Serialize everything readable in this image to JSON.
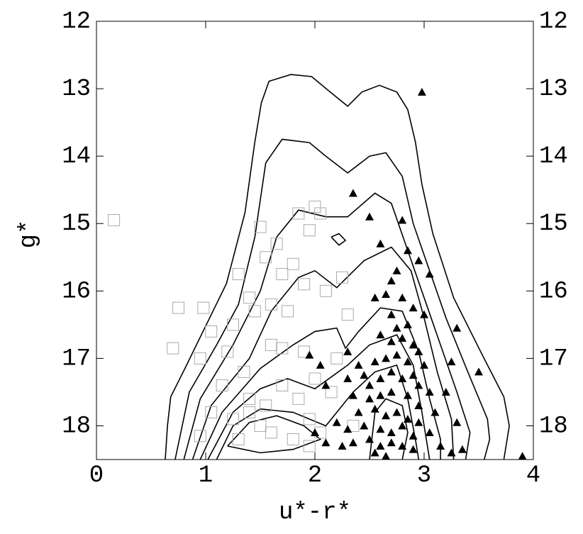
{
  "chart_data": {
    "type": "scatter",
    "xlabel": "u*-r*",
    "ylabel": "g*",
    "xlim": [
      0,
      4
    ],
    "ylim": [
      18.5,
      12
    ],
    "xticks": [
      0,
      1,
      2,
      3,
      4
    ],
    "yticks": [
      12,
      13,
      14,
      15,
      16,
      17,
      18
    ],
    "series": [
      {
        "marker": "square",
        "color": "#aaaaaa",
        "x": [
          0.16,
          0.75,
          0.7,
          0.95,
          0.98,
          1.05,
          1.2,
          1.25,
          1.3,
          1.4,
          1.5,
          1.55,
          1.65,
          1.7,
          1.8,
          1.85,
          1.95,
          2.0,
          2.05,
          1.9,
          2.1,
          1.45,
          1.6,
          1.75,
          1.7,
          1.6,
          1.35,
          1.15,
          1.05,
          0.95,
          1.25,
          1.4,
          1.5,
          1.6,
          1.7,
          1.85,
          1.95,
          2.05,
          2.15,
          1.8,
          1.3,
          2.3,
          2.25,
          1.55,
          2.2,
          1.9,
          2.0,
          1.4,
          2.35,
          1.95
        ],
        "y": [
          14.95,
          16.25,
          16.85,
          17.0,
          16.25,
          16.6,
          16.9,
          16.5,
          15.75,
          16.1,
          15.05,
          15.5,
          15.3,
          15.75,
          15.6,
          14.85,
          15.1,
          14.75,
          14.85,
          15.9,
          16.0,
          16.3,
          16.2,
          16.3,
          16.85,
          16.8,
          17.2,
          17.4,
          17.8,
          18.15,
          17.9,
          17.6,
          18.0,
          18.1,
          17.4,
          17.6,
          17.9,
          18.1,
          17.5,
          18.2,
          18.2,
          16.35,
          15.8,
          17.7,
          17.0,
          16.9,
          17.3,
          17.8,
          18.0,
          18.3
        ]
      },
      {
        "marker": "triangle",
        "color": "#000000",
        "x": [
          2.98,
          2.35,
          2.5,
          2.8,
          2.6,
          2.85,
          2.95,
          2.75,
          3.05,
          2.7,
          2.55,
          2.65,
          2.8,
          2.9,
          2.7,
          2.75,
          2.85,
          3.0,
          3.3,
          2.6,
          2.7,
          2.8,
          2.9,
          2.95,
          1.95,
          2.05,
          2.3,
          2.4,
          2.55,
          2.65,
          2.75,
          2.85,
          3.0,
          3.25,
          3.5,
          2.1,
          2.3,
          2.45,
          2.5,
          2.6,
          2.7,
          2.8,
          2.9,
          2.95,
          3.05,
          2.35,
          2.5,
          2.6,
          2.7,
          2.85,
          2.95,
          3.1,
          2.4,
          2.55,
          2.65,
          2.75,
          2.85,
          2.95,
          2.2,
          2.3,
          2.45,
          2.6,
          2.7,
          2.8,
          2.9,
          3.05,
          3.15,
          2.35,
          2.5,
          2.6,
          2.7,
          2.8,
          2.9,
          2.55,
          2.65,
          3.25,
          3.35,
          3.9,
          2.0,
          2.1,
          2.25,
          3.2,
          3.3
        ],
        "y": [
          13.05,
          14.55,
          14.9,
          14.95,
          15.3,
          15.4,
          15.55,
          15.7,
          15.75,
          15.85,
          16.1,
          16.05,
          16.1,
          16.25,
          16.35,
          16.55,
          16.5,
          16.35,
          16.55,
          16.65,
          16.75,
          16.7,
          16.8,
          16.9,
          16.95,
          17.1,
          16.9,
          17.1,
          17.05,
          17.0,
          16.95,
          17.05,
          17.1,
          17.05,
          17.2,
          17.4,
          17.3,
          17.25,
          17.4,
          17.3,
          17.2,
          17.3,
          17.25,
          17.4,
          17.5,
          17.55,
          17.6,
          17.55,
          17.5,
          17.55,
          17.7,
          17.8,
          17.8,
          17.75,
          17.85,
          17.8,
          17.9,
          17.95,
          17.95,
          18.05,
          18.0,
          18.05,
          18.1,
          18.0,
          18.15,
          18.1,
          18.3,
          18.25,
          18.2,
          18.3,
          18.25,
          18.3,
          18.35,
          18.4,
          18.45,
          18.4,
          18.35,
          18.45,
          18.1,
          18.25,
          18.3,
          17.5,
          17.95
        ]
      }
    ],
    "contours": [
      {
        "color": "#000000",
        "x": [
          0.63,
          0.65,
          0.68,
          0.81,
          1.0,
          1.19,
          1.36,
          1.45,
          1.51,
          1.58,
          1.78,
          1.97,
          2.14,
          2.3,
          2.43,
          2.59,
          2.75,
          2.85,
          2.92,
          2.98,
          3.08,
          3.27,
          3.53,
          3.73,
          3.78,
          3.73
        ],
        "y": [
          18.5,
          18.0,
          17.57,
          17.15,
          16.52,
          15.89,
          14.84,
          13.79,
          13.21,
          12.89,
          12.79,
          12.82,
          13.05,
          13.26,
          13.05,
          12.95,
          13.05,
          13.31,
          13.79,
          14.42,
          15.15,
          16.1,
          16.94,
          17.57,
          18.0,
          18.5
        ]
      },
      {
        "color": "#000000",
        "x": [
          0.72,
          0.85,
          1.1,
          1.3,
          1.45,
          1.55,
          1.7,
          1.95,
          2.1,
          2.3,
          2.5,
          2.65,
          2.8,
          2.9,
          3.05,
          3.2,
          3.4,
          3.58,
          3.6,
          3.55
        ],
        "y": [
          18.5,
          17.5,
          16.8,
          16.2,
          15.2,
          14.1,
          13.75,
          13.8,
          14.0,
          14.25,
          14.0,
          13.95,
          14.3,
          15.0,
          15.7,
          16.4,
          17.2,
          17.9,
          18.2,
          18.5
        ]
      },
      {
        "color": "#000000",
        "x": [
          0.8,
          0.95,
          1.25,
          1.5,
          1.65,
          1.85,
          2.1,
          2.3,
          2.55,
          2.7,
          2.85,
          3.0,
          3.15,
          3.3,
          3.42,
          3.38
        ],
        "y": [
          18.5,
          17.6,
          16.8,
          16.0,
          15.2,
          14.8,
          14.9,
          14.9,
          14.55,
          14.7,
          15.4,
          16.1,
          16.8,
          17.5,
          18.1,
          18.5
        ]
      },
      {
        "color": "#000000",
        "x": [
          0.88,
          1.05,
          1.4,
          1.6,
          1.85,
          2.0,
          2.2,
          2.45,
          2.7,
          2.88,
          3.0,
          3.12,
          3.25,
          3.27
        ],
        "y": [
          18.5,
          17.7,
          17.0,
          16.3,
          15.8,
          15.7,
          15.95,
          15.55,
          15.35,
          15.7,
          16.4,
          17.2,
          17.9,
          18.5
        ]
      },
      {
        "color": "#000000",
        "x": [
          0.95,
          1.15,
          1.5,
          1.8,
          2.0,
          2.2,
          2.28,
          2.4,
          2.6,
          2.8,
          2.95,
          3.05,
          3.15,
          3.15
        ],
        "y": [
          18.5,
          17.8,
          17.15,
          16.8,
          16.6,
          16.55,
          16.85,
          16.6,
          16.25,
          16.3,
          16.9,
          17.6,
          18.2,
          18.5
        ]
      },
      {
        "color": "#000000",
        "x": [
          1.02,
          1.25,
          1.5,
          1.75,
          2.0,
          2.3,
          2.5,
          2.75,
          2.9,
          2.98,
          3.05
        ],
        "y": [
          18.5,
          17.8,
          17.45,
          17.3,
          17.45,
          17.1,
          16.8,
          16.65,
          17.1,
          17.8,
          18.5
        ]
      },
      {
        "color": "#000000",
        "x": [
          1.1,
          1.25,
          1.5,
          1.8,
          2.1,
          2.35,
          2.55,
          2.75,
          2.85,
          2.92,
          2.95
        ],
        "y": [
          18.5,
          18.0,
          17.75,
          17.8,
          18.0,
          17.5,
          17.2,
          17.1,
          17.6,
          18.2,
          18.5
        ]
      },
      {
        "color": "#000000",
        "x": [
          1.2,
          1.4,
          1.65,
          1.9,
          2.05,
          1.8,
          1.5,
          1.2
        ],
        "y": [
          18.3,
          17.95,
          17.85,
          18.0,
          18.2,
          18.35,
          18.4,
          18.3
        ]
      },
      {
        "color": "#000000",
        "x": [
          2.15,
          2.22,
          2.28,
          2.22,
          2.15
        ],
        "y": [
          15.2,
          15.15,
          15.25,
          15.32,
          15.2
        ]
      },
      {
        "color": "#000000",
        "x": [
          2.5,
          2.55,
          2.65,
          2.8,
          2.85,
          2.8
        ],
        "y": [
          18.5,
          17.8,
          17.6,
          17.7,
          18.1,
          18.5
        ]
      }
    ]
  }
}
